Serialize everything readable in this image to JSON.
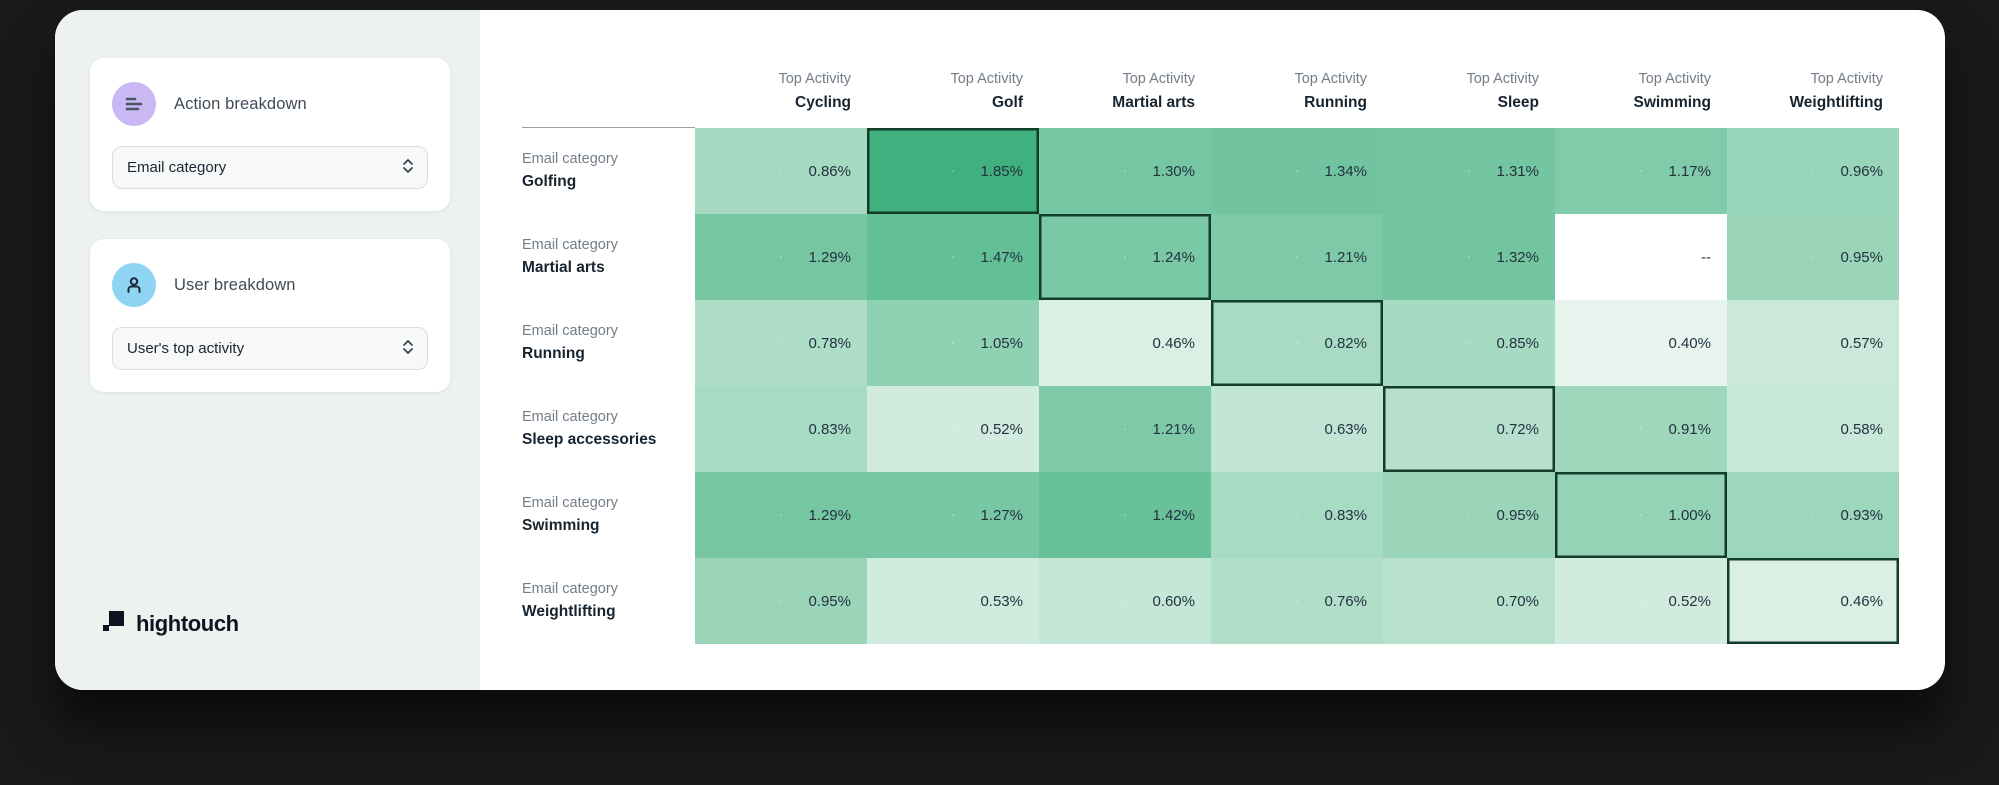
{
  "theme": {
    "action_icon_bg": "#c9b8f4",
    "user_icon_bg": "#8fd4f2",
    "cell_light": "#e8f5ee",
    "cell_dark": "#3fb07e",
    "highlight_border": "#123d2b",
    "empty_cell_bg": "#ffffff"
  },
  "sidebar": {
    "cards": [
      {
        "icon": "bars-icon",
        "title": "Action breakdown",
        "dropdown_value": "Email category"
      },
      {
        "icon": "person-icon",
        "title": "User breakdown",
        "dropdown_value": "User's top activity"
      }
    ],
    "logo_text": "hightouch"
  },
  "chart_data": {
    "type": "heatmap",
    "col_header_prefix": "Top Activity",
    "row_header_prefix": "Email category",
    "columns": [
      "Cycling",
      "Golf",
      "Martial arts",
      "Running",
      "Sleep",
      "Swimming",
      "Weightlifting"
    ],
    "rows": [
      "Golfing",
      "Martial arts",
      "Running",
      "Sleep accessories",
      "Swimming",
      "Weightlifting"
    ],
    "values": [
      [
        0.86,
        1.85,
        1.3,
        1.34,
        1.31,
        1.17,
        0.96
      ],
      [
        1.29,
        1.47,
        1.24,
        1.21,
        1.32,
        null,
        0.95
      ],
      [
        0.78,
        1.05,
        0.46,
        0.82,
        0.85,
        0.4,
        0.57
      ],
      [
        0.83,
        0.52,
        1.21,
        0.63,
        0.72,
        0.91,
        0.58
      ],
      [
        1.29,
        1.27,
        1.42,
        0.83,
        0.95,
        1.0,
        0.93
      ],
      [
        0.95,
        0.53,
        0.6,
        0.76,
        0.7,
        0.52,
        0.46
      ]
    ],
    "value_format": "percent_2dp",
    "null_label": "--",
    "highlighted_cells": [
      [
        0,
        1
      ],
      [
        1,
        2
      ],
      [
        2,
        3
      ],
      [
        3,
        4
      ],
      [
        4,
        5
      ],
      [
        5,
        6
      ]
    ],
    "color_scale": {
      "min": 0.4,
      "max": 1.85
    }
  }
}
